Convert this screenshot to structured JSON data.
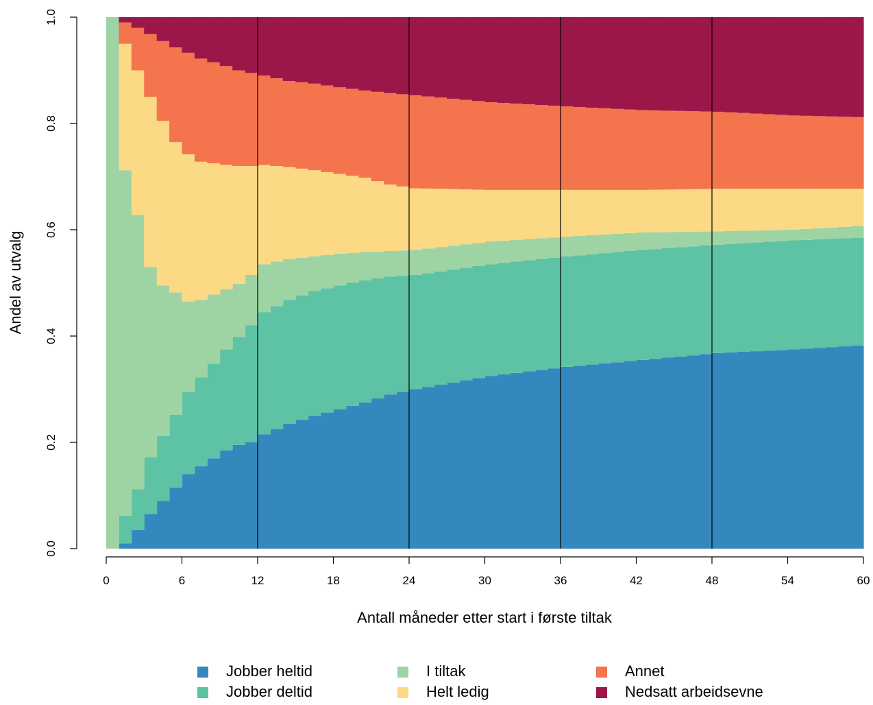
{
  "chart_data": {
    "type": "area",
    "style": "stacked-step",
    "xlabel": "Antall måneder etter start i første tiltak",
    "ylabel": "Andel av utvalg",
    "xlim": [
      0,
      60
    ],
    "ylim": [
      0,
      1
    ],
    "xticks": [
      "0",
      "6",
      "12",
      "18",
      "24",
      "30",
      "36",
      "42",
      "48",
      "54",
      "60"
    ],
    "yticks": [
      "0.0",
      "0.2",
      "0.4",
      "0.6",
      "0.8",
      "1.0"
    ],
    "vlines": [
      12,
      24,
      36,
      48
    ],
    "legend_position": "bottom",
    "anchor_months": [
      0,
      1,
      2,
      3,
      4,
      5,
      6,
      7,
      8,
      9,
      10,
      11,
      12,
      14,
      16,
      18,
      20,
      22,
      24,
      30,
      36,
      42,
      48,
      54,
      59
    ],
    "series": [
      {
        "name": "Jobber heltid",
        "color": "#3588bd",
        "cumulative_top": [
          0.0,
          0.01,
          0.035,
          0.065,
          0.09,
          0.115,
          0.14,
          0.155,
          0.17,
          0.185,
          0.195,
          0.2,
          0.215,
          0.235,
          0.25,
          0.262,
          0.275,
          0.29,
          0.3,
          0.325,
          0.342,
          0.355,
          0.368,
          0.375,
          0.382
        ]
      },
      {
        "name": "Jobber deltid",
        "color": "#5ec2a5",
        "cumulative_top": [
          0.0,
          0.062,
          0.112,
          0.172,
          0.212,
          0.252,
          0.295,
          0.322,
          0.348,
          0.375,
          0.398,
          0.42,
          0.445,
          0.468,
          0.485,
          0.495,
          0.505,
          0.512,
          0.515,
          0.535,
          0.55,
          0.562,
          0.572,
          0.58,
          0.585
        ]
      },
      {
        "name": "I tiltak",
        "color": "#9ed4a4",
        "cumulative_top": [
          1.0,
          0.712,
          0.628,
          0.53,
          0.495,
          0.482,
          0.465,
          0.468,
          0.478,
          0.488,
          0.498,
          0.515,
          0.535,
          0.545,
          0.55,
          0.555,
          0.558,
          0.56,
          0.562,
          0.578,
          0.587,
          0.595,
          0.597,
          0.6,
          0.607
        ]
      },
      {
        "name": "Helt ledig",
        "color": "#fbd985",
        "cumulative_top": [
          1.0,
          0.95,
          0.9,
          0.85,
          0.805,
          0.765,
          0.742,
          0.728,
          0.725,
          0.722,
          0.72,
          0.72,
          0.722,
          0.718,
          0.712,
          0.705,
          0.698,
          0.685,
          0.678,
          0.675,
          0.675,
          0.675,
          0.677,
          0.677,
          0.677
        ]
      },
      {
        "name": "Annet",
        "color": "#f4744e",
        "cumulative_top": [
          1.0,
          0.99,
          0.98,
          0.968,
          0.955,
          0.943,
          0.933,
          0.922,
          0.915,
          0.908,
          0.9,
          0.895,
          0.89,
          0.88,
          0.875,
          0.868,
          0.862,
          0.857,
          0.853,
          0.84,
          0.832,
          0.825,
          0.822,
          0.815,
          0.812
        ]
      },
      {
        "name": "Nedsatt arbeidsevne",
        "color": "#9c1749",
        "cumulative_top": [
          1.0,
          1.0,
          1.0,
          1.0,
          1.0,
          1.0,
          1.0,
          1.0,
          1.0,
          1.0,
          1.0,
          1.0,
          1.0,
          1.0,
          1.0,
          1.0,
          1.0,
          1.0,
          1.0,
          1.0,
          1.0,
          1.0,
          1.0,
          1.0,
          1.0
        ]
      }
    ]
  }
}
